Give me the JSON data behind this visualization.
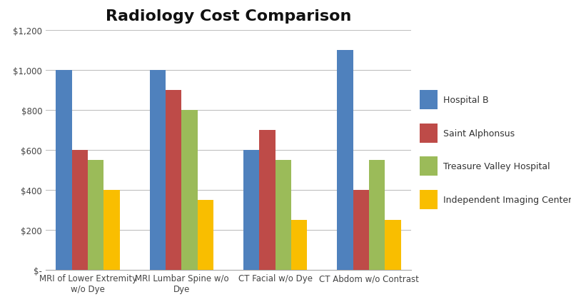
{
  "title": "Radiology Cost Comparison",
  "categories": [
    "MRI of Lower Extremity\nw/o Dye",
    "MRI Lumbar Spine w/o\nDye",
    "CT Facial w/o Dye",
    "CT Abdom w/o Contrast"
  ],
  "series": [
    {
      "label": "Hospital B",
      "color": "#4F81BD",
      "values": [
        1000,
        1000,
        600,
        1100
      ]
    },
    {
      "label": "Saint Alphonsus",
      "color": "#BE4B48",
      "values": [
        600,
        900,
        700,
        400
      ]
    },
    {
      "label": "Treasure Valley Hospital",
      "color": "#9BBB59",
      "values": [
        550,
        800,
        550,
        550
      ]
    },
    {
      "label": "Independent Imaging Center",
      "color": "#F9BE00",
      "values": [
        400,
        350,
        250,
        250
      ]
    }
  ],
  "ylim": [
    0,
    1200
  ],
  "yticks": [
    0,
    200,
    400,
    600,
    800,
    1000,
    1200
  ],
  "ytick_labels": [
    "$-",
    "$200",
    "$400",
    "$600",
    "$800",
    "$1,000",
    "$1,200"
  ],
  "background_color": "#FFFFFF",
  "grid_color": "#C0C0C0",
  "title_fontsize": 16,
  "tick_fontsize": 8.5,
  "legend_fontsize": 9,
  "bar_width": 0.17
}
